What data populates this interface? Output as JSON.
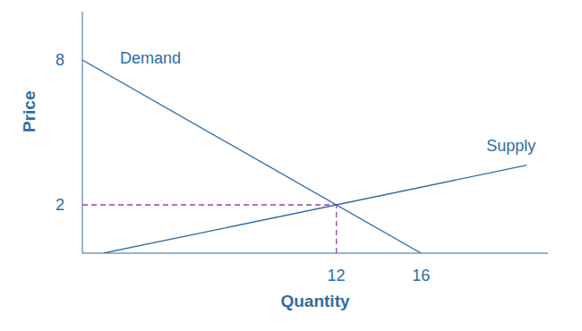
{
  "chart_data": {
    "type": "line",
    "x_label": "Quantity",
    "y_label": "Price",
    "xlim": [
      0,
      22
    ],
    "ylim": [
      0,
      10
    ],
    "xticks": [
      12,
      16
    ],
    "yticks": [
      2,
      8
    ],
    "series": [
      {
        "name": "Demand",
        "color": "#2e6da4",
        "x": [
          0,
          16
        ],
        "values": [
          8,
          0
        ]
      },
      {
        "name": "Supply",
        "color": "#2e6da4",
        "x": [
          1,
          12,
          21
        ],
        "values": [
          0,
          2,
          3.64
        ]
      }
    ],
    "equilibrium": {
      "x": 12,
      "y": 2,
      "color": "#9b3fb0",
      "line_style": "dashed"
    }
  }
}
